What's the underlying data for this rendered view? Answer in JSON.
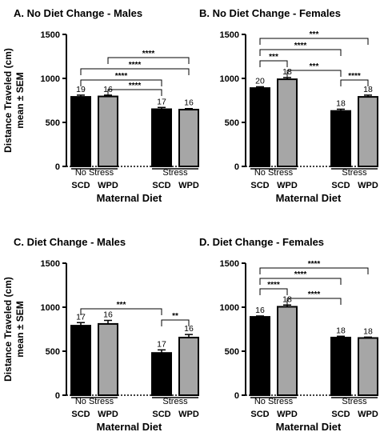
{
  "chart_data": [
    {
      "type": "bar",
      "title": "A.  No Diet Change - Males",
      "ylabel": [
        "Distance Traveled (cm)",
        "mean ± SEM"
      ],
      "xlabel": "Maternal Diet",
      "ylim": [
        0,
        1500
      ],
      "yticks": [
        0,
        500,
        1000,
        1500
      ],
      "groups": [
        "No Stress",
        "Stress"
      ],
      "categories": [
        "SCD",
        "WPD",
        "SCD",
        "WPD"
      ],
      "values": [
        790,
        795,
        650,
        645
      ],
      "errors": [
        20,
        15,
        20,
        12
      ],
      "n": [
        "19",
        "16",
        "17",
        "16"
      ],
      "fills": [
        "#000000",
        "#a6a6a6",
        "#000000",
        "#a6a6a6"
      ],
      "comparisons": [
        {
          "from": 1,
          "to": 3,
          "label": "****"
        },
        {
          "from": 0,
          "to": 3,
          "label": "****"
        },
        {
          "from": 0,
          "to": 2,
          "label": "****"
        },
        {
          "from": 1,
          "to": 2,
          "label": "****"
        }
      ]
    },
    {
      "type": "bar",
      "title": "B.  No Diet Change - Females",
      "ylabel": [],
      "xlabel": "Maternal Diet",
      "ylim": [
        0,
        1500
      ],
      "yticks": [
        0,
        500,
        1000,
        1500
      ],
      "groups": [
        "No Stress",
        "Stress"
      ],
      "categories": [
        "SCD",
        "WPD",
        "SCD",
        "WPD"
      ],
      "values": [
        890,
        990,
        630,
        790
      ],
      "errors": [
        15,
        20,
        20,
        20
      ],
      "n": [
        "20",
        "18",
        "18",
        "18"
      ],
      "fills": [
        "#000000",
        "#a6a6a6",
        "#000000",
        "#a6a6a6"
      ],
      "comparisons": [
        {
          "from": 0,
          "to": 3,
          "label": "***"
        },
        {
          "from": 0,
          "to": 2,
          "label": "****"
        },
        {
          "from": 0,
          "to": 1,
          "label": "***"
        },
        {
          "from": 1,
          "to": 2,
          "label": "***"
        },
        {
          "from": 2,
          "to": 3,
          "label": "****"
        }
      ]
    },
    {
      "type": "bar",
      "title": "C.  Diet Change - Males",
      "ylabel": [
        "Distance Traveled (cm)",
        "mean ± SEM"
      ],
      "xlabel": "Maternal Diet",
      "ylim": [
        0,
        1500
      ],
      "yticks": [
        0,
        500,
        1000,
        1500
      ],
      "groups": [
        "No Stress",
        "Stress"
      ],
      "categories": [
        "SCD",
        "WPD",
        "SCD",
        "WPD"
      ],
      "values": [
        790,
        810,
        480,
        655
      ],
      "errors": [
        35,
        40,
        35,
        35
      ],
      "n": [
        "17",
        "16",
        "17",
        "16"
      ],
      "fills": [
        "#000000",
        "#a6a6a6",
        "#000000",
        "#a6a6a6"
      ],
      "comparisons": [
        {
          "from": 0,
          "to": 2,
          "label": "***"
        },
        {
          "from": 2,
          "to": 3,
          "label": "**"
        }
      ]
    },
    {
      "type": "bar",
      "title": "D.  Diet Change - Females",
      "ylabel": [],
      "xlabel": "Maternal Diet",
      "ylim": [
        0,
        1500
      ],
      "yticks": [
        0,
        500,
        1000,
        1500
      ],
      "groups": [
        "No Stress",
        "Stress"
      ],
      "categories": [
        "SCD",
        "WPD",
        "SCD",
        "WPD"
      ],
      "values": [
        890,
        1005,
        655,
        650
      ],
      "errors": [
        10,
        20,
        15,
        10
      ],
      "n": [
        "16",
        "18",
        "18",
        "18"
      ],
      "fills": [
        "#000000",
        "#a6a6a6",
        "#000000",
        "#a6a6a6"
      ],
      "comparisons": [
        {
          "from": 0,
          "to": 3,
          "label": "****"
        },
        {
          "from": 0,
          "to": 2,
          "label": "****"
        },
        {
          "from": 0,
          "to": 1,
          "label": "****"
        },
        {
          "from": 1,
          "to": 2,
          "label": "****"
        }
      ]
    }
  ]
}
